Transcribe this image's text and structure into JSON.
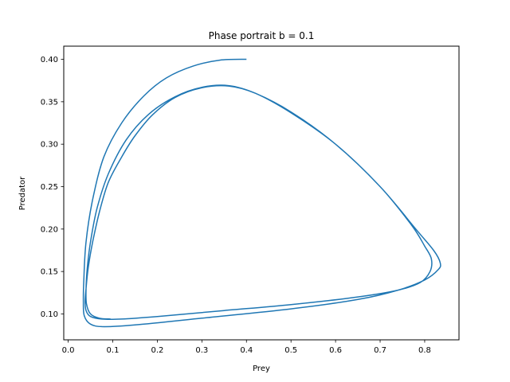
{
  "chart_data": {
    "type": "line",
    "title": "Phase portrait b = 0.1",
    "xlabel": "Prey",
    "ylabel": "Predator",
    "xlim": [
      -0.01,
      0.877
    ],
    "ylim": [
      0.0695,
      0.4155
    ],
    "xticks": [
      0.0,
      0.1,
      0.2,
      0.3,
      0.4,
      0.5,
      0.6,
      0.7,
      0.8
    ],
    "xtick_labels": [
      "0.0",
      "0.1",
      "0.2",
      "0.3",
      "0.4",
      "0.5",
      "0.6",
      "0.7",
      "0.8"
    ],
    "yticks": [
      0.1,
      0.15,
      0.2,
      0.25,
      0.3,
      0.35,
      0.4
    ],
    "ytick_labels": [
      "0.10",
      "0.15",
      "0.20",
      "0.25",
      "0.30",
      "0.35",
      "0.40"
    ],
    "grid": false,
    "series": [
      {
        "color": "#1f77b4",
        "x": [
          0.4,
          0.34,
          0.28,
          0.22,
          0.17,
          0.12,
          0.08,
          0.055,
          0.04,
          0.035,
          0.034,
          0.036,
          0.05,
          0.08,
          0.15,
          0.3,
          0.5,
          0.65,
          0.74,
          0.8,
          0.83,
          0.835,
          0.82,
          0.78,
          0.7,
          0.6,
          0.5,
          0.42,
          0.36,
          0.3,
          0.24,
          0.19,
          0.15,
          0.12,
          0.09,
          0.07,
          0.055,
          0.045,
          0.04,
          0.038,
          0.04,
          0.05,
          0.075,
          0.12,
          0.2,
          0.35,
          0.5,
          0.65,
          0.74,
          0.79,
          0.812,
          0.815,
          0.8,
          0.77,
          0.7,
          0.6,
          0.5,
          0.42,
          0.36,
          0.3,
          0.24,
          0.18,
          0.13,
          0.09,
          0.065,
          0.05,
          0.043,
          0.04,
          0.041,
          0.05,
          0.07,
          0.095
        ],
        "y": [
          0.4,
          0.399,
          0.392,
          0.378,
          0.357,
          0.325,
          0.285,
          0.235,
          0.185,
          0.14,
          0.115,
          0.098,
          0.088,
          0.085,
          0.087,
          0.095,
          0.106,
          0.117,
          0.128,
          0.14,
          0.152,
          0.16,
          0.175,
          0.2,
          0.25,
          0.3,
          0.337,
          0.36,
          0.3685,
          0.3665,
          0.355,
          0.335,
          0.31,
          0.285,
          0.255,
          0.22,
          0.185,
          0.155,
          0.13,
          0.115,
          0.104,
          0.097,
          0.094,
          0.094,
          0.097,
          0.104,
          0.111,
          0.12,
          0.128,
          0.137,
          0.15,
          0.165,
          0.18,
          0.205,
          0.25,
          0.3,
          0.338,
          0.36,
          0.369,
          0.367,
          0.356,
          0.335,
          0.305,
          0.265,
          0.225,
          0.185,
          0.155,
          0.13,
          0.112,
          0.1,
          0.095,
          0.094
        ]
      }
    ]
  }
}
